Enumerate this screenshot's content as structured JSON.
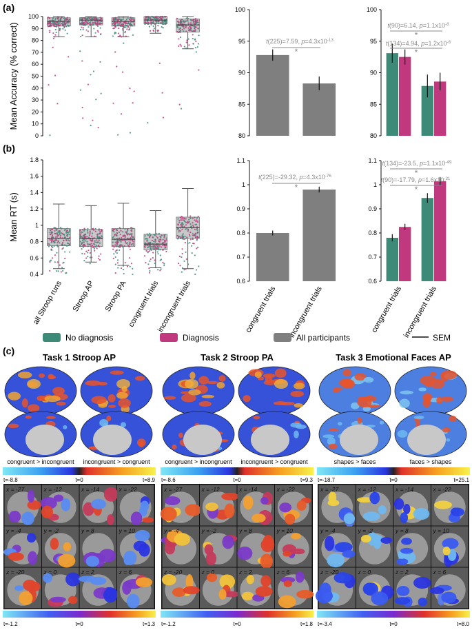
{
  "figure": {
    "panel_a": "(a)",
    "panel_b": "(b)",
    "panel_c": "(c)"
  },
  "colors": {
    "no_diagnosis": "#3d8a78",
    "diagnosis": "#c0397f",
    "all": "#7f7f7f",
    "box": "#c8c8c8"
  },
  "chart_data": [
    {
      "type": "box",
      "id": "a_box",
      "ylabel": "Mean Accuracy (% correct)",
      "ylim": [
        0,
        100
      ],
      "yticks": [
        0,
        10,
        20,
        30,
        40,
        50,
        60,
        70,
        80,
        90,
        100
      ],
      "categories": [
        "all Stroop runs",
        "Stroop AP",
        "Stroop PA",
        "congruent trials",
        "incongruent trials"
      ],
      "boxes": [
        {
          "min": 83,
          "q1": 92,
          "median": 96,
          "q3": 99,
          "max": 100
        },
        {
          "min": 83,
          "q1": 93,
          "median": 97,
          "q3": 99,
          "max": 100
        },
        {
          "min": 83,
          "q1": 92,
          "median": 96,
          "q3": 99,
          "max": 100
        },
        {
          "min": 86,
          "q1": 94,
          "median": 97,
          "q3": 100,
          "max": 100
        },
        {
          "min": 73,
          "q1": 87,
          "median": 93,
          "q3": 98,
          "max": 100
        }
      ]
    },
    {
      "type": "bar",
      "id": "a_all",
      "ylim": [
        80,
        100
      ],
      "yticks": [
        80,
        85,
        90,
        95,
        100
      ],
      "categories": [
        "congruent trials",
        "incongruent trials"
      ],
      "series": [
        {
          "values": [
            92.8,
            88.3
          ],
          "sem": [
            0.9,
            1.1
          ]
        }
      ],
      "annotations": [
        {
          "text_pre": "t",
          "text": "(225)=7.59, ",
          "text_p": "p",
          "text_post": "=4.3x10",
          "sup": "-13",
          "star": "*"
        }
      ]
    },
    {
      "type": "bar",
      "id": "a_dx",
      "ylim": [
        80,
        100
      ],
      "yticks": [
        80,
        85,
        90,
        95,
        100
      ],
      "categories": [
        "congruent trials",
        "incongruent trials"
      ],
      "series": [
        {
          "name": "No diagnosis",
          "values": [
            93.1,
            87.9
          ],
          "sem": [
            1.5,
            1.8
          ]
        },
        {
          "name": "Diagnosis",
          "values": [
            92.5,
            88.6
          ],
          "sem": [
            1.2,
            1.4
          ]
        }
      ],
      "annotations": [
        {
          "text_pre": "t",
          "text": "(90)=6.14, ",
          "text_p": "p",
          "text_post": "=1.1x10",
          "sup": "-8",
          "star": "*"
        },
        {
          "text_pre": "t",
          "text": "(134)=4.94, ",
          "text_p": "p",
          "text_post": "=1.2x10",
          "sup": "-6",
          "star": "*"
        }
      ]
    },
    {
      "type": "box",
      "id": "b_box",
      "ylabel": "Mean RT (s)",
      "ylim": [
        0.4,
        1.8
      ],
      "yticks": [
        0.4,
        0.6,
        0.8,
        1,
        1.2,
        1.4,
        1.6,
        1.8
      ],
      "categories": [
        "all Stroop runs",
        "Stroop AP",
        "Stroop PA",
        "congruent trials",
        "incongruent trials"
      ],
      "boxes": [
        {
          "min": 0.47,
          "q1": 0.75,
          "median": 0.84,
          "q3": 0.96,
          "max": 1.26
        },
        {
          "min": 0.55,
          "q1": 0.74,
          "median": 0.84,
          "q3": 0.95,
          "max": 1.24
        },
        {
          "min": 0.51,
          "q1": 0.74,
          "median": 0.83,
          "q3": 0.96,
          "max": 1.27
        },
        {
          "min": 0.48,
          "q1": 0.7,
          "median": 0.77,
          "q3": 0.89,
          "max": 1.18
        },
        {
          "min": 0.47,
          "q1": 0.84,
          "median": 0.97,
          "q3": 1.1,
          "max": 1.45
        }
      ]
    },
    {
      "type": "bar",
      "id": "b_all",
      "ylim": [
        0.6,
        1.1
      ],
      "yticks": [
        0.6,
        0.7,
        0.8,
        0.9,
        1,
        1.1
      ],
      "categories": [
        "congruent trials",
        "incongruent trials"
      ],
      "series": [
        {
          "values": [
            0.8,
            0.98
          ],
          "sem": [
            0.01,
            0.012
          ]
        }
      ],
      "annotations": [
        {
          "text_pre": "t",
          "text": "(225)=-29.32, ",
          "text_p": "p",
          "text_post": "=4.3x10",
          "sup": "-76",
          "star": "*"
        }
      ]
    },
    {
      "type": "bar",
      "id": "b_dx",
      "ylim": [
        0.6,
        1.1
      ],
      "yticks": [
        0.6,
        0.7,
        0.8,
        0.9,
        1,
        1.1
      ],
      "categories": [
        "congruent trials",
        "incongruent trials"
      ],
      "series": [
        {
          "name": "No diagnosis",
          "values": [
            0.78,
            0.945
          ],
          "sem": [
            0.015,
            0.02
          ]
        },
        {
          "name": "Diagnosis",
          "values": [
            0.825,
            1.015
          ],
          "sem": [
            0.013,
            0.017
          ]
        }
      ],
      "annotations": [
        {
          "text_pre": "t",
          "text": "(134)=-23.5, ",
          "text_p": "p",
          "text_post": "=1.1x10",
          "sup": "-49",
          "star": "*"
        },
        {
          "text_pre": "t",
          "text": "(90)=-17.79, ",
          "text_p": "p",
          "text_post": "=1.6x10",
          "sup": "-31",
          "star": "*"
        }
      ]
    }
  ],
  "legend": {
    "no_diagnosis": "No diagnosis",
    "diagnosis": "Diagnosis",
    "all": "All participants",
    "sem": "SEM"
  },
  "tasks": [
    {
      "title": "Task 1 Stroop AP",
      "contrast_left": "congruent > incongruent",
      "contrast_right": "incongruent > congruent",
      "cbar_min": "t=-8.8",
      "cbar_mid": "t=0",
      "cbar_max": "t=8.9",
      "slice_labels": [
        "x = -27",
        "x = -12",
        "x = -14",
        "x = -22",
        "y = -4",
        "y = -2",
        "y = 8",
        "y = 10",
        "z = -20",
        "z = 0",
        "z = 2",
        "z = 6"
      ],
      "sub_min": "t=-1.2",
      "sub_mid": "t=0",
      "sub_max": "t=1.3"
    },
    {
      "title": "Task 2 Stroop PA",
      "contrast_left": "congruent > incongruent",
      "contrast_right": "incongruent > congruent",
      "cbar_min": "t=-8.6",
      "cbar_mid": "t=0",
      "cbar_max": "t=9.3",
      "slice_labels": [
        "x = -27",
        "x = -12",
        "x = -14",
        "x = -22",
        "y = -4",
        "y = -2",
        "y = 8",
        "y = 10",
        "z = -20",
        "z = 0",
        "z = 2",
        "z = 6"
      ],
      "sub_min": "t=-1.2",
      "sub_mid": "t=0",
      "sub_max": "t=1.8"
    },
    {
      "title": "Task 3 Emotional Faces AP",
      "contrast_left": "shapes > faces",
      "contrast_right": "faces > shapes",
      "cbar_min": "t=-18.7",
      "cbar_mid": "t=0",
      "cbar_max": "t=25.1",
      "slice_labels": [
        "x = -27",
        "x = -12",
        "x = -14",
        "x = -22",
        "y = -4",
        "y = -2",
        "y = 8",
        "y = 10",
        "z = -20",
        "z = 0",
        "z = 2",
        "z = 6"
      ],
      "sub_min": "t=-3.4",
      "sub_mid": "t=0",
      "sub_max": "t=8.0"
    }
  ]
}
